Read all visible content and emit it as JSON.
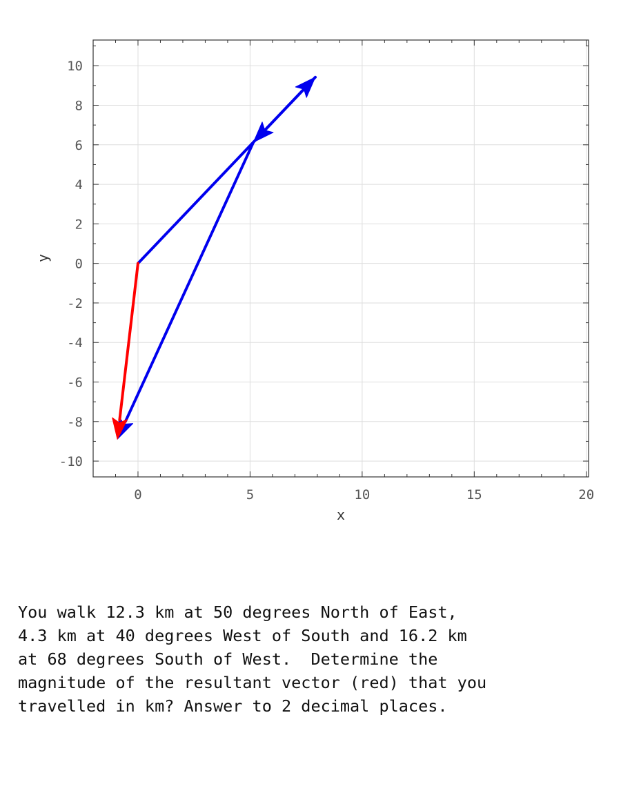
{
  "chart_data": {
    "type": "vector",
    "xlabel": "x",
    "ylabel": "y",
    "xlim": [
      -2,
      20.1
    ],
    "ylim": [
      -10.8,
      11.3
    ],
    "xticks": [
      0,
      5,
      10,
      15,
      20
    ],
    "yticks": [
      10,
      8,
      6,
      4,
      2,
      0,
      -2,
      -4,
      -6,
      -8,
      -10
    ],
    "grid": true,
    "vectors": [
      {
        "color": "#0000ee",
        "start": [
          0,
          0
        ],
        "end": [
          7.91,
          9.42
        ]
      },
      {
        "color": "#0000ee",
        "start": [
          7.91,
          9.42
        ],
        "end": [
          5.15,
          6.13
        ]
      },
      {
        "color": "#0000ee",
        "start": [
          5.15,
          6.13
        ],
        "end": [
          -0.92,
          -8.89
        ]
      },
      {
        "color": "#ff0000",
        "start": [
          0,
          0
        ],
        "end": [
          -0.92,
          -8.89
        ]
      }
    ]
  },
  "question": "You walk 12.3 km at 50 degrees North of East,\n4.3 km at 40 degrees West of South and 16.2 km\nat 68 degrees South of West.  Determine the\nmagnitude of the resultant vector (red) that you\ntravelled in km? Answer to 2 decimal places."
}
